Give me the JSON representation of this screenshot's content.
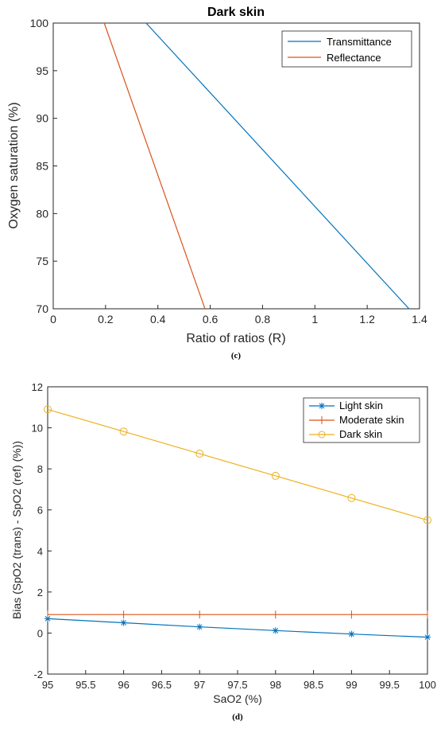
{
  "chart_data": [
    {
      "type": "line",
      "title": "Dark skin",
      "xlabel": "Ratio of ratios (R)",
      "ylabel": "Oxygen saturation (%)",
      "caption": "(c)",
      "xlim": [
        0,
        1.4
      ],
      "ylim": [
        70,
        100
      ],
      "xticks": [
        "0",
        "0.2",
        "0.4",
        "0.6",
        "0.8",
        "1",
        "1.2",
        "1.4"
      ],
      "yticks": [
        "70",
        "75",
        "80",
        "85",
        "90",
        "95",
        "100"
      ],
      "legend_position": "top-right",
      "grid": false,
      "series": [
        {
          "name": "Transmittance",
          "color": "#0072BD",
          "x": [
            0.355,
            1.36
          ],
          "y": [
            100,
            70
          ]
        },
        {
          "name": "Reflectance",
          "color": "#D95319",
          "x": [
            0.195,
            0.58
          ],
          "y": [
            100,
            70
          ]
        }
      ]
    },
    {
      "type": "line",
      "title": "",
      "xlabel": "SaO2 (%)",
      "ylabel": "Bias (SpO2 (trans) - SpO2 (ref) (%))",
      "caption": "(d)",
      "xlim": [
        95,
        100
      ],
      "ylim": [
        -2,
        12
      ],
      "xticks": [
        "95",
        "95.5",
        "96",
        "96.5",
        "97",
        "97.5",
        "98",
        "98.5",
        "99",
        "99.5",
        "100"
      ],
      "yticks": [
        "-2",
        "0",
        "2",
        "4",
        "6",
        "8",
        "10",
        "12"
      ],
      "legend_position": "top-right",
      "grid": false,
      "series": [
        {
          "name": "Light skin",
          "color": "#0072BD",
          "marker": "star",
          "x": [
            95,
            96,
            97,
            98,
            99,
            100
          ],
          "y": [
            0.7,
            0.5,
            0.3,
            0.12,
            -0.05,
            -0.2
          ]
        },
        {
          "name": "Moderate skin",
          "color": "#D95319",
          "marker": "vline",
          "x": [
            95,
            96,
            97,
            98,
            99,
            100
          ],
          "y": [
            0.9,
            0.9,
            0.9,
            0.9,
            0.9,
            0.9
          ]
        },
        {
          "name": "Dark skin",
          "color": "#EDB120",
          "marker": "circle",
          "x": [
            95,
            96,
            97,
            98,
            99,
            100
          ],
          "y": [
            10.9,
            9.82,
            8.74,
            7.66,
            6.58,
            5.5
          ]
        }
      ]
    }
  ]
}
